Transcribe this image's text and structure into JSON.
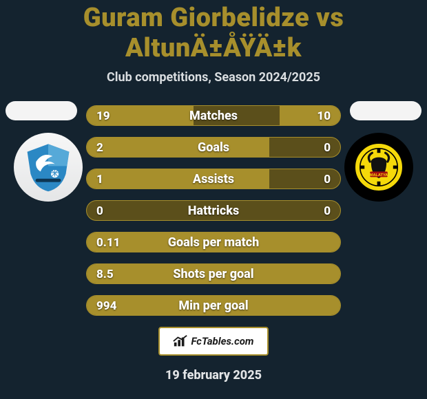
{
  "title": "Guram Giorbelidze vs AltunÄ±ÅŸÄ±k",
  "subtitle": "Club competitions, Season 2024/2025",
  "footer_brand": "FcTables.com",
  "date": "19 february 2025",
  "colors": {
    "background": "#14232f",
    "accent": "#a78f2c",
    "bar_dark": "#5b4f1b",
    "text_light": "#ffffff"
  },
  "player_left": {
    "badge_bg": "#f2f2f2",
    "crest_primary": "#2b88c4",
    "crest_secondary": "#103a5b"
  },
  "player_right": {
    "badge_bg": "#000000",
    "crest_primary": "#f5d90a",
    "crest_secondary": "#111111"
  },
  "rows": [
    {
      "label": "Matches",
      "left": "19",
      "right": "10",
      "left_pct": 42,
      "right_pct": 24
    },
    {
      "label": "Goals",
      "left": "2",
      "right": "0",
      "left_pct": 72,
      "right_pct": 0
    },
    {
      "label": "Assists",
      "left": "1",
      "right": "0",
      "left_pct": 72,
      "right_pct": 0
    },
    {
      "label": "Hattricks",
      "left": "0",
      "right": "0",
      "left_pct": 0,
      "right_pct": 0
    },
    {
      "label": "Goals per match",
      "left": "0.11",
      "right": "",
      "left_pct": 100,
      "right_pct": 0
    },
    {
      "label": "Shots per goal",
      "left": "8.5",
      "right": "",
      "left_pct": 100,
      "right_pct": 0
    },
    {
      "label": "Min per goal",
      "left": "994",
      "right": "",
      "left_pct": 100,
      "right_pct": 0
    }
  ]
}
